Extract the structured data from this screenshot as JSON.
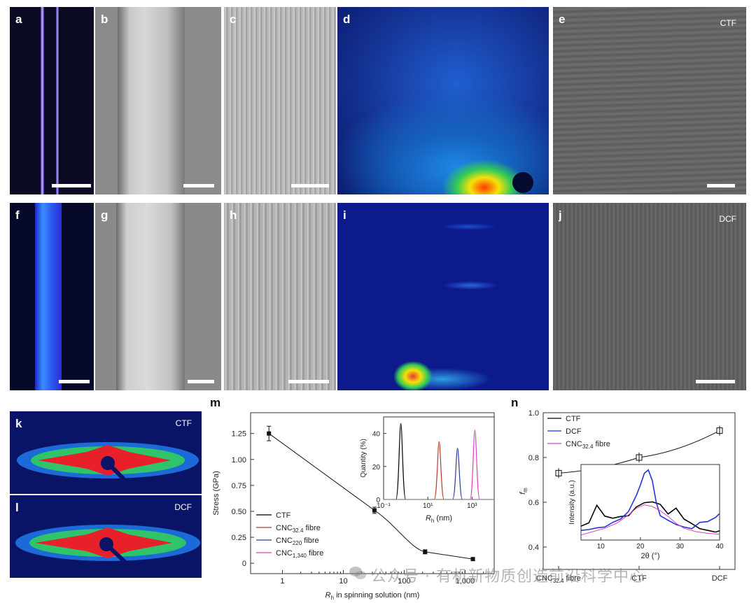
{
  "panels": {
    "a": {
      "label": "a"
    },
    "b": {
      "label": "b"
    },
    "c": {
      "label": "c"
    },
    "d": {
      "label": "d"
    },
    "e": {
      "label": "e",
      "tag": "CTF"
    },
    "f": {
      "label": "f"
    },
    "g": {
      "label": "g"
    },
    "h": {
      "label": "h"
    },
    "i": {
      "label": "i"
    },
    "j": {
      "label": "j",
      "tag": "DCF"
    },
    "k": {
      "label": "k",
      "tag": "CTF"
    },
    "l": {
      "label": "l",
      "tag": "DCF"
    },
    "m": {
      "label": "m"
    },
    "n": {
      "label": "n"
    }
  },
  "watermark": "公众号 · 有机新物质创造前沿科学中心",
  "chart_data": [
    {
      "id": "m-main",
      "type": "line",
      "xlabel": "R_h in spinning solution (nm)",
      "ylabel": "Stress (GPa)",
      "xscale": "log",
      "xlim": [
        0.3,
        3000
      ],
      "ylim": [
        -0.1,
        1.45
      ],
      "xticks": [
        {
          "v": 1,
          "t": "1"
        },
        {
          "v": 10,
          "t": "10"
        },
        {
          "v": 100,
          "t": "100"
        },
        {
          "v": 1000,
          "t": "1,000"
        }
      ],
      "yticks": [
        {
          "v": 0,
          "t": "0"
        },
        {
          "v": 0.25,
          "t": "0.25"
        },
        {
          "v": 0.5,
          "t": "0.50"
        },
        {
          "v": 0.75,
          "t": "0.75"
        },
        {
          "v": 1.0,
          "t": "1.00"
        },
        {
          "v": 1.25,
          "t": "1.25"
        }
      ],
      "points": [
        {
          "x": 0.6,
          "y": 1.25,
          "err": 0.07
        },
        {
          "x": 32.4,
          "y": 0.51,
          "err": 0.03
        },
        {
          "x": 220,
          "y": 0.11,
          "err": 0.02
        },
        {
          "x": 1340,
          "y": 0.04,
          "err": 0.01
        }
      ],
      "legend": [
        {
          "name": "CTF",
          "color": "#000000"
        },
        {
          "name": "CNC32.4 fibre",
          "base": "CNC",
          "sub": "32.4",
          "suffix": " fibre",
          "color": "#c0392b"
        },
        {
          "name": "CNC220 fibre",
          "base": "CNC",
          "sub": "220",
          "suffix": " fibre",
          "color": "#2c3e9e"
        },
        {
          "name": "CNC1,340 fibre",
          "base": "CNC",
          "sub": "1,340",
          "suffix": " fibre",
          "color": "#e040c0"
        }
      ]
    },
    {
      "id": "m-inset",
      "type": "line",
      "xlabel": "R_h (nm)",
      "ylabel": "Quantity (%)",
      "xscale": "log",
      "xlim": [
        0.1,
        10000
      ],
      "ylim": [
        0,
        50
      ],
      "xticks": [
        {
          "v": 0.1,
          "t": "10⁻¹"
        },
        {
          "v": 10,
          "t": "10¹"
        },
        {
          "v": 1000,
          "t": "10³"
        }
      ],
      "yticks": [
        {
          "v": 0,
          "t": "0"
        },
        {
          "v": 20,
          "t": "20"
        },
        {
          "v": 40,
          "t": "40"
        }
      ],
      "series": [
        {
          "name": "CTF",
          "color": "#000000",
          "center": 0.6,
          "peak": 46
        },
        {
          "name": "CNC32.4",
          "color": "#c0392b",
          "center": 32.4,
          "peak": 35
        },
        {
          "name": "CNC220",
          "color": "#2c3e9e",
          "center": 220,
          "peak": 31
        },
        {
          "name": "CNC1,340",
          "color": "#e040c0",
          "center": 1340,
          "peak": 42
        }
      ]
    },
    {
      "id": "n-main",
      "type": "line",
      "ylabel": "f_m",
      "categories": [
        "CNC32.4 fibre",
        "CTF",
        "DCF"
      ],
      "ylim": [
        0.3,
        1.0
      ],
      "yticks": [
        {
          "v": 0.4,
          "t": "0.4"
        },
        {
          "v": 0.6,
          "t": "0.6"
        },
        {
          "v": 0.8,
          "t": "0.8"
        },
        {
          "v": 1.0,
          "t": "1.0"
        }
      ],
      "values": [
        0.73,
        0.8,
        0.92
      ],
      "legend": [
        {
          "name": "CTF",
          "color": "#000000"
        },
        {
          "name": "DCF",
          "color": "#2233dd"
        },
        {
          "name": "CNC32.4 fibre",
          "base": "CNC",
          "sub": "32.4",
          "suffix": " fibre",
          "color": "#e040c0"
        }
      ]
    },
    {
      "id": "n-inset",
      "type": "line",
      "xlabel": "2θ (°)",
      "ylabel": "Intensity (a.u.)",
      "xlim": [
        5,
        40
      ],
      "xticks": [
        {
          "v": 10,
          "t": "10"
        },
        {
          "v": 20,
          "t": "20"
        },
        {
          "v": 30,
          "t": "30"
        },
        {
          "v": 40,
          "t": "40"
        }
      ],
      "series": [
        {
          "name": "CTF",
          "color": "#000000",
          "x": [
            5,
            7,
            9,
            11,
            13,
            15,
            17,
            19,
            21,
            23,
            25,
            27,
            29,
            31,
            33,
            35,
            37,
            39,
            40
          ],
          "y": [
            0.35,
            0.4,
            0.62,
            0.5,
            0.45,
            0.48,
            0.5,
            0.58,
            0.64,
            0.66,
            0.64,
            0.5,
            0.58,
            0.46,
            0.38,
            0.33,
            0.32,
            0.31,
            0.3
          ]
        },
        {
          "name": "DCF",
          "color": "#2233dd",
          "x": [
            5,
            7,
            9,
            11,
            13,
            15,
            17,
            19,
            20,
            21,
            22,
            23,
            24,
            25,
            27,
            29,
            31,
            33,
            35,
            37,
            39,
            40
          ],
          "y": [
            0.3,
            0.32,
            0.35,
            0.37,
            0.4,
            0.45,
            0.55,
            0.72,
            0.85,
            1.0,
            1.05,
            0.9,
            0.65,
            0.5,
            0.42,
            0.38,
            0.36,
            0.35,
            0.4,
            0.42,
            0.48,
            0.5
          ]
        },
        {
          "name": "CNC32.4 fibre",
          "color": "#e040c0",
          "x": [
            5,
            8,
            11,
            14,
            17,
            19,
            21,
            23,
            25,
            27,
            29,
            31,
            34,
            37,
            40
          ],
          "y": [
            0.26,
            0.3,
            0.34,
            0.4,
            0.5,
            0.58,
            0.62,
            0.6,
            0.55,
            0.48,
            0.4,
            0.34,
            0.3,
            0.28,
            0.27
          ]
        }
      ]
    }
  ]
}
